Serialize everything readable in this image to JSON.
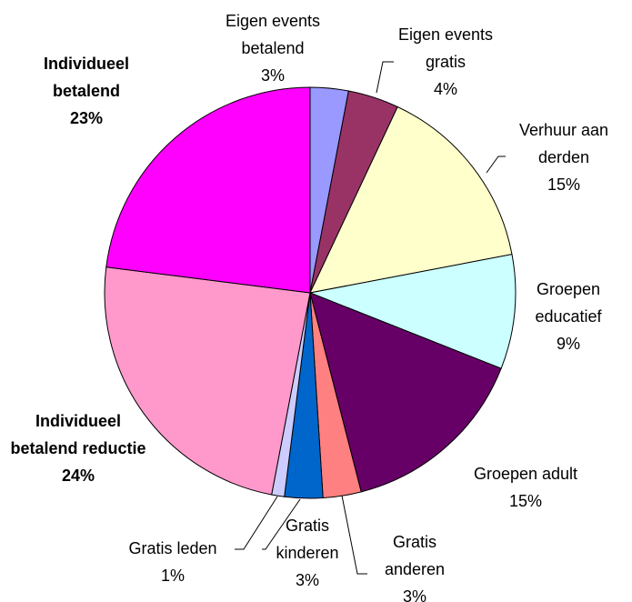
{
  "chart_data": {
    "type": "pie",
    "categories": [
      "Eigen events betalend",
      "Eigen events gratis",
      "Verhuur aan derden",
      "Groepen educatief",
      "Groepen adult",
      "Gratis anderen",
      "Gratis kinderen",
      "Gratis leden",
      "Individueel betalend reductie",
      "Individueel betalend"
    ],
    "values": [
      3,
      4,
      15,
      9,
      15,
      3,
      3,
      1,
      24,
      23
    ],
    "value_labels": [
      "3%",
      "4%",
      "15%",
      "9%",
      "15%",
      "3%",
      "3%",
      "1%",
      "24%",
      "23%"
    ],
    "colors": [
      "#9999ff",
      "#993366",
      "#ffffcc",
      "#ccffff",
      "#660066",
      "#ff8080",
      "#0066cc",
      "#ccccff",
      "#ff99cc",
      "#ff00ff"
    ]
  }
}
